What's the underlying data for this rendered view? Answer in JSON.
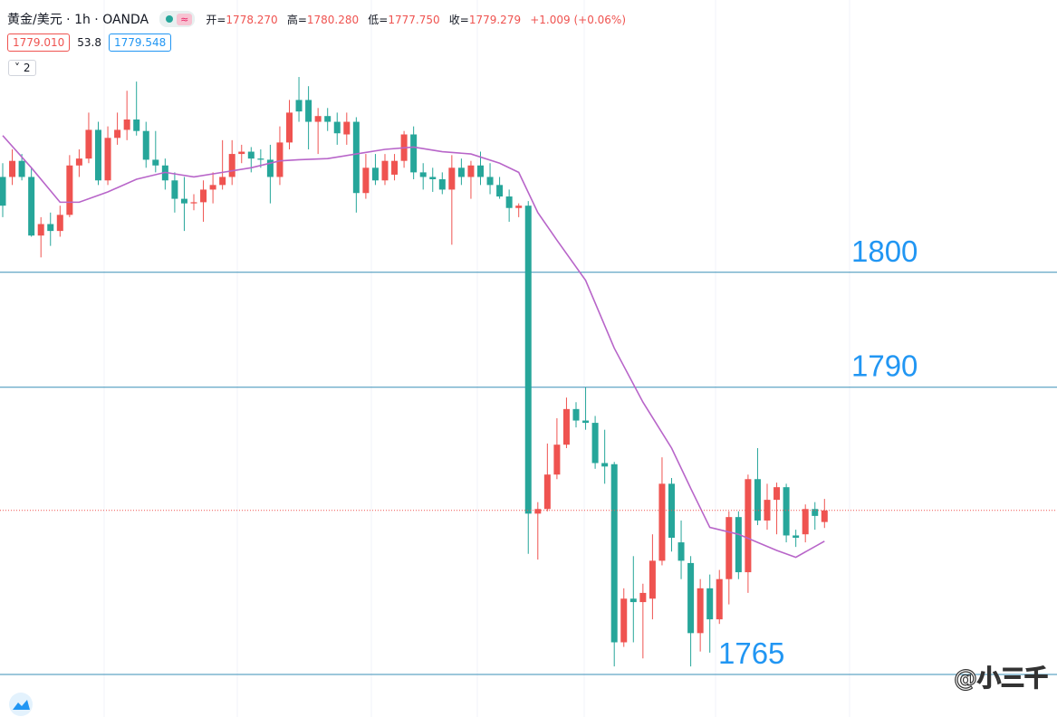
{
  "header": {
    "symbol": "黄金/美元 · 1h · OANDA",
    "indicator_icon": "≈",
    "ohlc": [
      {
        "key": "开=",
        "value": "1778.270"
      },
      {
        "key": "高=",
        "value": "1780.280"
      },
      {
        "key": "低=",
        "value": "1777.750"
      },
      {
        "key": "收=",
        "value": "1779.279"
      }
    ],
    "change": "+1.009 (+0.06%)",
    "bid": "1779.010",
    "spread": "53.8",
    "ask": "1779.548",
    "indicator_count": "2"
  },
  "watermark": "@小三千",
  "chart_data": {
    "type": "candlestick",
    "categories": [
      null,
      null,
      null,
      null,
      null,
      null,
      null,
      null,
      null,
      null,
      null,
      null,
      null,
      null,
      null,
      null,
      null,
      null,
      null,
      null,
      null,
      null,
      null,
      null,
      null,
      null,
      null,
      null,
      null,
      null,
      null,
      null,
      null,
      null,
      null,
      null,
      null,
      null,
      null,
      null,
      null,
      null,
      null,
      null,
      null,
      null,
      null,
      null,
      null,
      null,
      null,
      null,
      null,
      null,
      null,
      null,
      null,
      null,
      null,
      null,
      null,
      null,
      null,
      null,
      null,
      null,
      null,
      null,
      null,
      null,
      null,
      null,
      null,
      null,
      null,
      null,
      null,
      null,
      null,
      null,
      null,
      null,
      null,
      null,
      null,
      null,
      null
    ],
    "open": [
      1808.3,
      1808.3,
      1809.7,
      1808.3,
      1803.2,
      1804.2,
      1803.6,
      1805.0,
      1809.3,
      1809.9,
      1812.4,
      1808.0,
      1811.7,
      1812.4,
      1813.3,
      1812.3,
      1809.8,
      1809.3,
      1808.0,
      1806.4,
      1806.0,
      1806.1,
      1807.2,
      1807.6,
      1808.3,
      1810.3,
      1810.5,
      1809.9,
      1809.8,
      1808.3,
      1811.3,
      1815.0,
      1815.0,
      1813.1,
      1813.6,
      1813.1,
      1812.0,
      1813.1,
      1806.9,
      1809.1,
      1808.0,
      1808.5,
      1809.7,
      1812.0,
      1808.7,
      1808.3,
      1808.1,
      1807.2,
      1809.1,
      1808.3,
      1809.3,
      1808.3,
      1807.6,
      1806.6,
      1805.6,
      1805.8,
      1779.0,
      1779.4,
      1782.4,
      1785.0,
      1788.1,
      1787.1,
      1786.9,
      1783.4,
      1783.3,
      1767.8,
      1771.6,
      1771.3,
      1771.6,
      1774.9,
      1781.6,
      1776.5,
      1774.7,
      1768.6,
      1772.5,
      1769.8,
      1773.3,
      1778.7,
      1773.9,
      1782.0,
      1778.4,
      1780.2,
      1781.3,
      1777.1,
      1777.2,
      1779.4,
      1778.27
    ],
    "high": [
      1809.5,
      1810.7,
      1810.3,
      1809.1,
      1804.8,
      1805.2,
      1805.8,
      1810.2,
      1810.7,
      1813.9,
      1813.1,
      1812.7,
      1813.9,
      1815.8,
      1816.6,
      1813.1,
      1812.3,
      1809.9,
      1808.7,
      1808.3,
      1806.8,
      1808.0,
      1808.7,
      1811.5,
      1811.5,
      1811.1,
      1810.9,
      1810.7,
      1811.1,
      1812.7,
      1815.0,
      1817.0,
      1816.2,
      1814.3,
      1814.3,
      1813.9,
      1813.9,
      1813.5,
      1810.3,
      1810.3,
      1810.3,
      1810.3,
      1812.3,
      1812.7,
      1809.5,
      1809.1,
      1808.7,
      1810.2,
      1809.9,
      1809.7,
      1810.5,
      1809.5,
      1808.3,
      1807.2,
      1806.0,
      1806.2,
      1780.0,
      1785.1,
      1787.3,
      1789.1,
      1788.7,
      1790.0,
      1787.5,
      1786.3,
      1783.5,
      1772.5,
      1775.3,
      1772.9,
      1777.2,
      1783.9,
      1782.1,
      1778.4,
      1775.3,
      1773.3,
      1773.7,
      1774.1,
      1779.2,
      1779.2,
      1782.4,
      1784.7,
      1781.6,
      1781.7,
      1781.6,
      1777.6,
      1779.8,
      1780.0,
      1780.28
    ],
    "low": [
      1804.8,
      1807.6,
      1808.0,
      1803.1,
      1801.3,
      1802.3,
      1803.1,
      1804.8,
      1808.3,
      1809.5,
      1807.6,
      1807.6,
      1811.1,
      1811.5,
      1811.9,
      1809.1,
      1808.7,
      1807.2,
      1805.2,
      1803.6,
      1805.4,
      1804.4,
      1806.0,
      1807.2,
      1807.6,
      1809.5,
      1808.7,
      1809.1,
      1806.0,
      1807.6,
      1810.7,
      1813.1,
      1810.7,
      1810.3,
      1812.3,
      1811.1,
      1811.1,
      1805.2,
      1806.4,
      1807.6,
      1807.6,
      1808.0,
      1809.1,
      1808.1,
      1807.2,
      1807.0,
      1806.8,
      1802.4,
      1807.6,
      1806.4,
      1807.6,
      1806.8,
      1806.4,
      1804.4,
      1804.8,
      1775.5,
      1775.0,
      1779.2,
      1782.0,
      1784.7,
      1786.5,
      1786.3,
      1782.9,
      1781.6,
      1765.7,
      1767.4,
      1767.8,
      1766.4,
      1769.8,
      1774.5,
      1775.7,
      1773.3,
      1765.7,
      1767.0,
      1766.9,
      1769.4,
      1771.1,
      1773.3,
      1772.1,
      1778.0,
      1777.6,
      1777.2,
      1776.5,
      1776.1,
      1776.5,
      1777.6,
      1777.75
    ],
    "close": [
      1805.8,
      1809.7,
      1808.3,
      1803.2,
      1804.2,
      1803.6,
      1805.0,
      1809.3,
      1809.9,
      1812.4,
      1808.0,
      1811.7,
      1812.4,
      1813.3,
      1812.3,
      1809.8,
      1809.3,
      1808.0,
      1806.4,
      1806.0,
      1806.1,
      1807.2,
      1807.6,
      1808.3,
      1810.3,
      1810.5,
      1809.9,
      1809.8,
      1808.3,
      1811.3,
      1813.9,
      1814.0,
      1813.1,
      1813.6,
      1813.1,
      1812.1,
      1813.1,
      1806.9,
      1809.1,
      1808.0,
      1809.7,
      1809.7,
      1812.0,
      1808.7,
      1808.3,
      1808.1,
      1807.2,
      1809.1,
      1808.3,
      1809.3,
      1808.3,
      1807.6,
      1806.6,
      1805.6,
      1805.8,
      1779.0,
      1779.4,
      1782.4,
      1785.0,
      1788.1,
      1787.1,
      1786.9,
      1783.4,
      1783.1,
      1767.8,
      1771.6,
      1771.3,
      1772.1,
      1774.9,
      1781.6,
      1776.9,
      1774.9,
      1768.6,
      1772.5,
      1769.8,
      1773.3,
      1778.7,
      1773.9,
      1782.0,
      1778.4,
      1780.2,
      1781.3,
      1777.1,
      1776.9,
      1779.4,
      1778.8,
      1779.279
    ],
    "up_color": "#ef5350",
    "down_color": "#26a69a",
    "moving_average": {
      "color": "#b865c9",
      "x": [
        0,
        3,
        6,
        8,
        11,
        14,
        17,
        20,
        23,
        26,
        29,
        31,
        34,
        37,
        40,
        43,
        46,
        49,
        52,
        54,
        56,
        58,
        61,
        64,
        67,
        70,
        72,
        74,
        77,
        79,
        81,
        83,
        86
      ],
      "values": [
        1811.9,
        1809.1,
        1806.1,
        1806.1,
        1807.0,
        1808.1,
        1808.7,
        1808.3,
        1808.7,
        1809.1,
        1809.7,
        1809.8,
        1809.9,
        1810.3,
        1810.7,
        1810.9,
        1810.5,
        1810.3,
        1809.5,
        1808.7,
        1805.2,
        1802.8,
        1799.3,
        1793.4,
        1788.7,
        1784.7,
        1781.2,
        1777.8,
        1777.2,
        1776.5,
        1775.8,
        1775.2,
        1776.6
      ]
    },
    "levels": [
      1800,
      1790,
      1765
    ],
    "level_color": "#2196f3",
    "ylim": [
      1761.3,
      1823.7
    ]
  }
}
